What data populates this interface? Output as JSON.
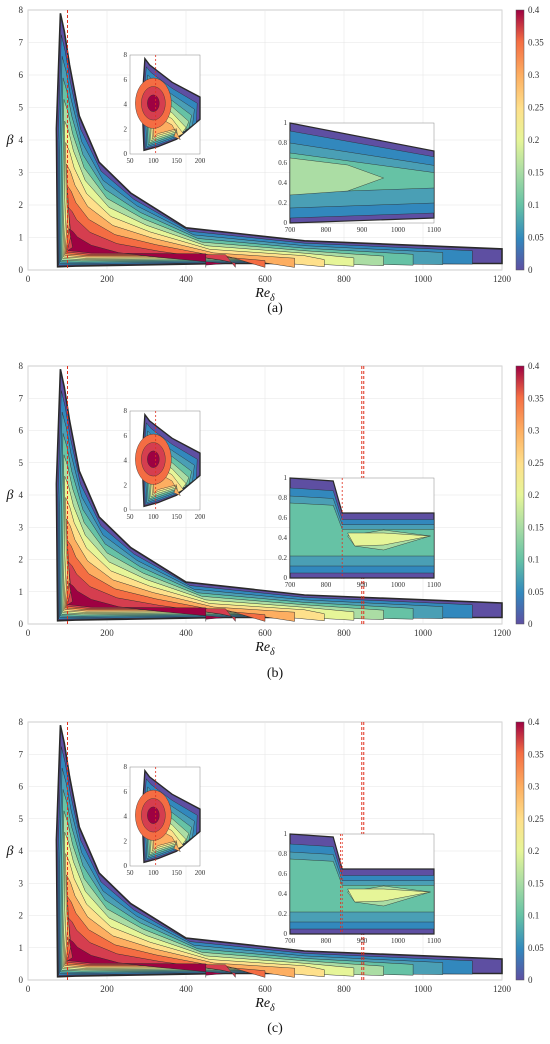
{
  "chart_data": [
    {
      "type": "contour",
      "caption": "(a)",
      "xlabel": "Re",
      "xlabel_sub": "δ",
      "ylabel": "β",
      "xlim": [
        0,
        1200
      ],
      "ylim": [
        0,
        8
      ],
      "xticks": [
        "0",
        "200",
        "400",
        "600",
        "800",
        "1000",
        "1200"
      ],
      "yticks": [
        "0",
        "1",
        "2",
        "3",
        "4",
        "5",
        "6",
        "7",
        "8"
      ],
      "colorbar": {
        "min": 0,
        "max": 0.4,
        "ticks": [
          "0",
          "0.05",
          "0.1",
          "0.15",
          "0.2",
          "0.25",
          "0.3",
          "0.35",
          "0.4"
        ],
        "colormap": "Spectral_r"
      },
      "peak": {
        "x": 100,
        "y": 4.2,
        "value": 0.4
      },
      "dashed_x": [
        100
      ],
      "inset1": {
        "xlim": [
          50,
          200
        ],
        "ylim": [
          0,
          8
        ],
        "xticks": [
          "50",
          "100",
          "150",
          "200"
        ],
        "yticks": [
          "0",
          "2",
          "4",
          "6",
          "8"
        ],
        "dashed_x": [
          105
        ]
      },
      "inset2": {
        "xlim": [
          700,
          1100
        ],
        "ylim": [
          0,
          1
        ],
        "xticks": [
          "700",
          "800",
          "900",
          "1000",
          "1100"
        ],
        "yticks": [
          "0",
          "0.2",
          "0.4",
          "0.6",
          "0.8",
          "1"
        ],
        "dashed_x": [],
        "kink": false
      }
    },
    {
      "type": "contour",
      "caption": "(b)",
      "xlabel": "Re",
      "xlabel_sub": "δ",
      "ylabel": "β",
      "xlim": [
        0,
        1200
      ],
      "ylim": [
        0,
        8
      ],
      "xticks": [
        "0",
        "200",
        "400",
        "600",
        "800",
        "1000",
        "1200"
      ],
      "yticks": [
        "0",
        "1",
        "2",
        "3",
        "4",
        "5",
        "6",
        "7",
        "8"
      ],
      "colorbar": {
        "min": 0,
        "max": 0.4,
        "ticks": [
          "0",
          "0.05",
          "0.1",
          "0.15",
          "0.2",
          "0.25",
          "0.3",
          "0.35",
          "0.4"
        ],
        "colormap": "Spectral_r"
      },
      "peak": {
        "x": 100,
        "y": 4.2,
        "value": 0.4
      },
      "dashed_x": [
        100,
        845,
        850
      ],
      "inset1": {
        "xlim": [
          50,
          200
        ],
        "ylim": [
          0,
          8
        ],
        "xticks": [
          "50",
          "100",
          "150",
          "200"
        ],
        "yticks": [
          "0",
          "2",
          "4",
          "6",
          "8"
        ],
        "dashed_x": [
          105
        ]
      },
      "inset2": {
        "xlim": [
          700,
          1100
        ],
        "ylim": [
          0,
          1
        ],
        "xticks": [
          "700",
          "800",
          "900",
          "1000",
          "1100"
        ],
        "yticks": [
          "0",
          "0.2",
          "0.4",
          "0.6",
          "0.8",
          "1"
        ],
        "dashed_x": [
          845
        ],
        "kink": true
      }
    },
    {
      "type": "contour",
      "caption": "(c)",
      "xlabel": "Re",
      "xlabel_sub": "δ",
      "ylabel": "β",
      "xlim": [
        0,
        1200
      ],
      "ylim": [
        0,
        8
      ],
      "xticks": [
        "0",
        "200",
        "400",
        "600",
        "800",
        "1000",
        "1200"
      ],
      "yticks": [
        "0",
        "1",
        "2",
        "3",
        "4",
        "5",
        "6",
        "7",
        "8"
      ],
      "colorbar": {
        "min": 0,
        "max": 0.4,
        "ticks": [
          "0",
          "0.05",
          "0.1",
          "0.15",
          "0.2",
          "0.25",
          "0.3",
          "0.35",
          "0.4"
        ],
        "colormap": "Spectral_r"
      },
      "peak": {
        "x": 100,
        "y": 4.2,
        "value": 0.4
      },
      "dashed_x": [
        100,
        845,
        850
      ],
      "inset1": {
        "xlim": [
          50,
          200
        ],
        "ylim": [
          0,
          8
        ],
        "xticks": [
          "50",
          "100",
          "150",
          "200"
        ],
        "yticks": [
          "0",
          "2",
          "4",
          "6",
          "8"
        ],
        "dashed_x": [
          105
        ]
      },
      "inset2": {
        "xlim": [
          700,
          1100
        ],
        "ylim": [
          0,
          1
        ],
        "xticks": [
          "700",
          "800",
          "900",
          "1000",
          "1100"
        ],
        "yticks": [
          "0",
          "0.2",
          "0.4",
          "0.6",
          "0.8",
          "1"
        ],
        "dashed_x": [
          840,
          845
        ],
        "kink": true
      }
    }
  ]
}
